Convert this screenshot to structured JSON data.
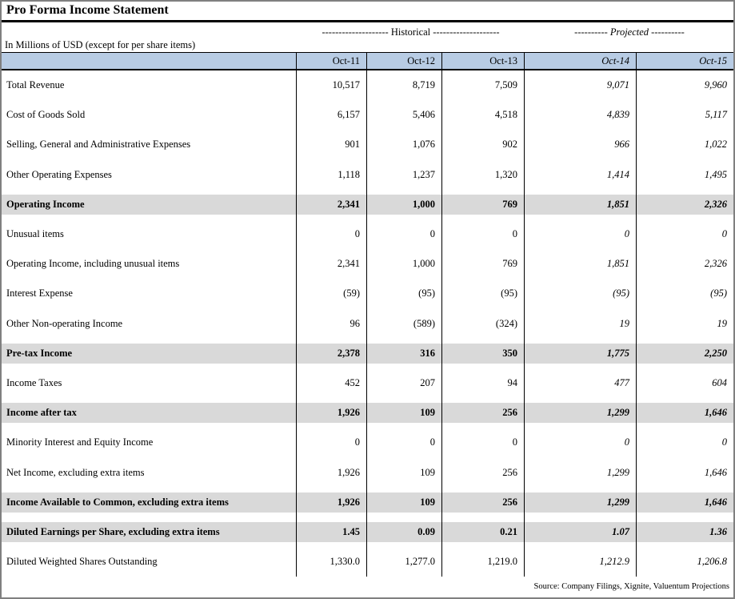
{
  "title": "Pro Forma Income Statement",
  "units_note": "In Millions of USD (except for per share items)",
  "header": {
    "historical_label": "-------------------- Historical --------------------",
    "projected_label": "---------- Projected ----------"
  },
  "table": {
    "columns": [
      {
        "label": "Oct-11",
        "projected": false
      },
      {
        "label": "Oct-12",
        "projected": false
      },
      {
        "label": "Oct-13",
        "projected": false
      },
      {
        "label": "Oct-14",
        "projected": true
      },
      {
        "label": "Oct-15",
        "projected": true
      }
    ],
    "rows": [
      {
        "label": "Total Revenue",
        "values": [
          "10,517",
          "8,719",
          "7,509",
          "9,071",
          "9,960"
        ],
        "subtotal": false
      },
      {
        "label": "Cost of Goods Sold",
        "values": [
          "6,157",
          "5,406",
          "4,518",
          "4,839",
          "5,117"
        ],
        "subtotal": false
      },
      {
        "label": "Selling, General and Administrative Expenses",
        "values": [
          "901",
          "1,076",
          "902",
          "966",
          "1,022"
        ],
        "subtotal": false
      },
      {
        "label": "Other Operating Expenses",
        "values": [
          "1,118",
          "1,237",
          "1,320",
          "1,414",
          "1,495"
        ],
        "subtotal": false
      },
      {
        "label": "Operating Income",
        "values": [
          "2,341",
          "1,000",
          "769",
          "1,851",
          "2,326"
        ],
        "subtotal": true
      },
      {
        "label": "Unusual items",
        "values": [
          "0",
          "0",
          "0",
          "0",
          "0"
        ],
        "subtotal": false
      },
      {
        "label": "Operating Income, including unusual items",
        "values": [
          "2,341",
          "1,000",
          "769",
          "1,851",
          "2,326"
        ],
        "subtotal": false
      },
      {
        "label": "Interest Expense",
        "values": [
          "(59)",
          "(95)",
          "(95)",
          "(95)",
          "(95)"
        ],
        "subtotal": false
      },
      {
        "label": "Other Non-operating Income",
        "values": [
          "96",
          "(589)",
          "(324)",
          "19",
          "19"
        ],
        "subtotal": false
      },
      {
        "label": "Pre-tax Income",
        "values": [
          "2,378",
          "316",
          "350",
          "1,775",
          "2,250"
        ],
        "subtotal": true
      },
      {
        "label": "Income Taxes",
        "values": [
          "452",
          "207",
          "94",
          "477",
          "604"
        ],
        "subtotal": false
      },
      {
        "label": "Income after tax",
        "values": [
          "1,926",
          "109",
          "256",
          "1,299",
          "1,646"
        ],
        "subtotal": true
      },
      {
        "label": "Minority Interest and Equity Income",
        "values": [
          "0",
          "0",
          "0",
          "0",
          "0"
        ],
        "subtotal": false
      },
      {
        "label": "Net Income, excluding extra items",
        "values": [
          "1,926",
          "109",
          "256",
          "1,299",
          "1,646"
        ],
        "subtotal": false
      },
      {
        "label": "Income Available to Common, excluding extra items",
        "values": [
          "1,926",
          "109",
          "256",
          "1,299",
          "1,646"
        ],
        "subtotal": true
      },
      {
        "label": "Diluted Earnings per Share, excluding extra items",
        "values": [
          "1.45",
          "0.09",
          "0.21",
          "1.07",
          "1.36"
        ],
        "subtotal": true
      },
      {
        "label": "Diluted Weighted Shares Outstanding",
        "values": [
          "1,330.0",
          "1,277.0",
          "1,219.0",
          "1,212.9",
          "1,206.8"
        ],
        "subtotal": false
      }
    ]
  },
  "footer": {
    "source": "Source: Company Filings, Xignite, Valuentum Projections"
  },
  "colors": {
    "header_fill": "#b8cce4",
    "subtotal_fill": "#d9d9d9",
    "outer_border": "#808080"
  }
}
